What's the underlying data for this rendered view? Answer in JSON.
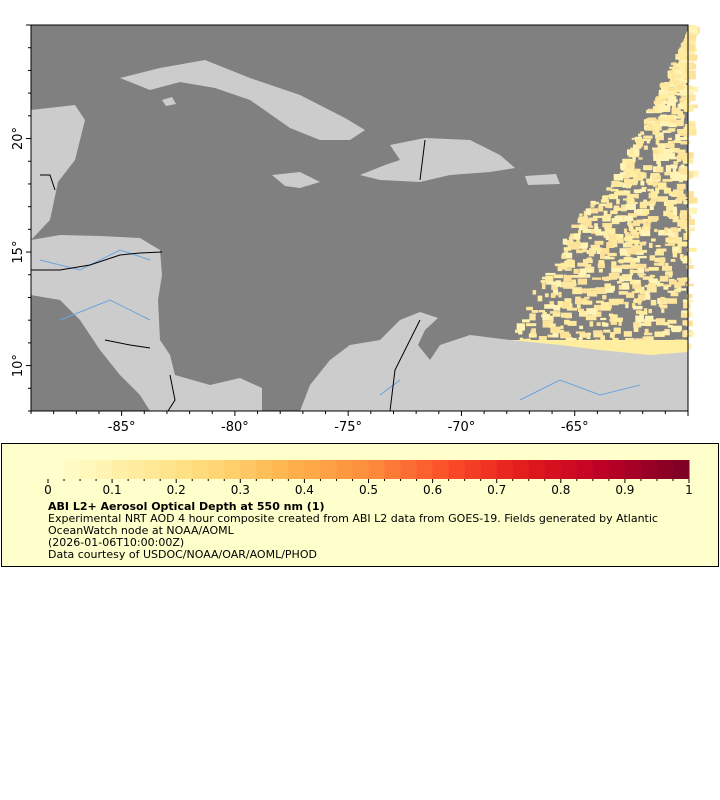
{
  "map": {
    "lon_range": [
      -89,
      -60
    ],
    "lat_range": [
      8,
      25
    ],
    "x_ticks": [
      {
        "value": -85,
        "label": "-85°"
      },
      {
        "value": -80,
        "label": "-80°"
      },
      {
        "value": -75,
        "label": "-75°"
      },
      {
        "value": -70,
        "label": "-70°"
      },
      {
        "value": -65,
        "label": "-65°"
      }
    ],
    "y_ticks": [
      {
        "value": 20,
        "label": "20°"
      },
      {
        "value": 15,
        "label": "15°"
      },
      {
        "value": 10,
        "label": "10°"
      }
    ],
    "colors": {
      "ocean": "#808080",
      "land": "#cccccc",
      "rivers": "#6aa5e0",
      "borders": "#000000",
      "aod_low": "#ffeda0"
    }
  },
  "legend": {
    "colorbar": {
      "min": 0,
      "max": 1,
      "steps": 40,
      "tick_labels": [
        "0",
        "0.1",
        "0.2",
        "0.3",
        "0.4",
        "0.5",
        "0.6",
        "0.7",
        "0.8",
        "0.9",
        "1"
      ],
      "colors": [
        "#ffffcc",
        "#ffeda0",
        "#fed976",
        "#feb24c",
        "#fd8d3c",
        "#fc4e2a",
        "#e31a1c",
        "#bd0026",
        "#800026"
      ]
    },
    "title": "ABI L2+ Aerosol Optical Depth at 550 nm (1)",
    "line1": "Experimental NRT AOD 4 hour composite created from ABI L2 data from GOES-19. Fields generated by Atlantic",
    "line2": "OceanWatch node at NOAA/AOML",
    "line3": "(2026-01-06T10:00:00Z)",
    "line4": "Data courtesy of USDOC/NOAA/OAR/AOML/PHOD"
  }
}
